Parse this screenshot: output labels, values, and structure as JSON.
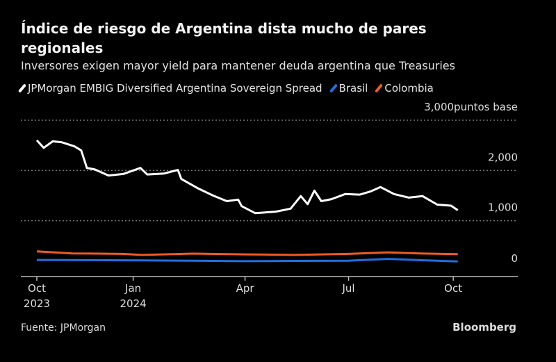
{
  "chart_data": {
    "type": "line",
    "title": "Índice de riesgo de Argentina dista mucho de pares regionales",
    "subtitle": "Inversores exigen mayor yield para mantener deuda argentina que Treasuries",
    "ylabel": "puntos base",
    "ylim": [
      0,
      3000
    ],
    "yticks": [
      {
        "value": 3000,
        "label": "3,000"
      },
      {
        "value": 2000,
        "label": "2,000"
      },
      {
        "value": 1000,
        "label": "1,000"
      },
      {
        "value": 0,
        "label": "0"
      }
    ],
    "xlim": [
      "2023-10-01",
      "2024-10-15"
    ],
    "xticks": [
      {
        "date": "2023-10-01",
        "label": "Oct",
        "year": "2023"
      },
      {
        "date": "2024-01-01",
        "label": "Jan",
        "year": "2024"
      },
      {
        "date": "2024-04-01",
        "label": "Apr",
        "year": ""
      },
      {
        "date": "2024-07-01",
        "label": "Jul",
        "year": ""
      },
      {
        "date": "2024-10-01",
        "label": "Oct",
        "year": ""
      }
    ],
    "grid": true,
    "legend_position": "top-left",
    "series": [
      {
        "name": "JPMorgan EMBIG Diversified Argentina Sovereign Spread",
        "color": "#ffffff",
        "points": [
          [
            "2023-10-01",
            2600
          ],
          [
            "2023-10-07",
            2450
          ],
          [
            "2023-10-15",
            2580
          ],
          [
            "2023-10-23",
            2560
          ],
          [
            "2023-11-03",
            2480
          ],
          [
            "2023-11-09",
            2400
          ],
          [
            "2023-11-14",
            2050
          ],
          [
            "2023-11-21",
            2020
          ],
          [
            "2023-12-03",
            1900
          ],
          [
            "2023-12-16",
            1930
          ],
          [
            "2023-12-31",
            2050
          ],
          [
            "2024-01-06",
            1920
          ],
          [
            "2024-01-21",
            1940
          ],
          [
            "2024-02-02",
            2010
          ],
          [
            "2024-02-05",
            1830
          ],
          [
            "2024-02-20",
            1640
          ],
          [
            "2024-03-04",
            1500
          ],
          [
            "2024-03-16",
            1390
          ],
          [
            "2024-03-26",
            1420
          ],
          [
            "2024-03-29",
            1290
          ],
          [
            "2024-04-10",
            1150
          ],
          [
            "2024-04-28",
            1180
          ],
          [
            "2024-05-11",
            1240
          ],
          [
            "2024-05-20",
            1490
          ],
          [
            "2024-05-26",
            1330
          ],
          [
            "2024-06-01",
            1600
          ],
          [
            "2024-06-07",
            1390
          ],
          [
            "2024-06-16",
            1430
          ],
          [
            "2024-06-28",
            1530
          ],
          [
            "2024-07-11",
            1520
          ],
          [
            "2024-07-20",
            1580
          ],
          [
            "2024-07-29",
            1670
          ],
          [
            "2024-08-10",
            1530
          ],
          [
            "2024-08-23",
            1460
          ],
          [
            "2024-09-04",
            1490
          ],
          [
            "2024-09-17",
            1320
          ],
          [
            "2024-09-29",
            1300
          ],
          [
            "2024-10-05",
            1210
          ]
        ]
      },
      {
        "name": "Brasil",
        "color": "#1f6fe0",
        "points": [
          [
            "2023-10-01",
            220
          ],
          [
            "2023-11-15",
            215
          ],
          [
            "2024-01-01",
            210
          ],
          [
            "2024-02-15",
            205
          ],
          [
            "2024-04-01",
            195
          ],
          [
            "2024-05-15",
            200
          ],
          [
            "2024-07-01",
            205
          ],
          [
            "2024-08-05",
            240
          ],
          [
            "2024-09-01",
            215
          ],
          [
            "2024-10-05",
            190
          ]
        ]
      },
      {
        "name": "Colombia",
        "color": "#ee5a24",
        "points": [
          [
            "2023-10-01",
            390
          ],
          [
            "2023-11-01",
            350
          ],
          [
            "2023-12-15",
            340
          ],
          [
            "2024-01-01",
            320
          ],
          [
            "2024-02-15",
            345
          ],
          [
            "2024-04-01",
            330
          ],
          [
            "2024-05-15",
            320
          ],
          [
            "2024-07-01",
            340
          ],
          [
            "2024-08-05",
            370
          ],
          [
            "2024-09-01",
            350
          ],
          [
            "2024-10-05",
            335
          ]
        ]
      }
    ]
  },
  "source": "Fuente: JPMorgan",
  "brand": "Bloomberg"
}
